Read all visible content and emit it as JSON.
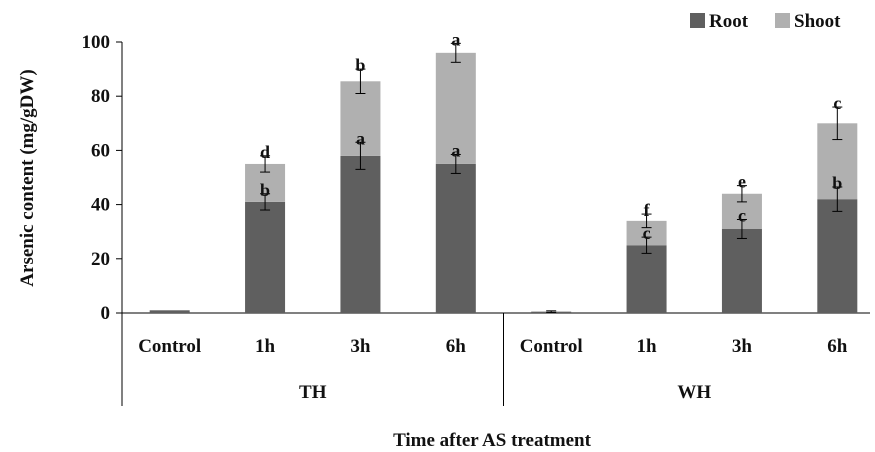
{
  "chart_data": {
    "type": "bar",
    "stacked": true,
    "title": "",
    "xlabel": "Time after AS treatment",
    "ylabel": "Arsenic content (mg/gDW)",
    "ylim": [
      0,
      100
    ],
    "yticks": [
      0,
      20,
      40,
      60,
      80,
      100
    ],
    "grid": false,
    "legend_position": "top-right",
    "groups": [
      "TH",
      "WH"
    ],
    "categories": [
      "Control",
      "1h",
      "3h",
      "6h",
      "Control",
      "1h",
      "3h",
      "6h"
    ],
    "series": [
      {
        "name": "Root",
        "color": "#5f5f5f",
        "values": [
          1,
          41,
          58,
          55,
          0.5,
          25,
          31,
          42
        ],
        "error": [
          0,
          3,
          5,
          3.5,
          0,
          3,
          3.5,
          4.5
        ],
        "letters": [
          "",
          "b",
          "a",
          "a",
          "",
          "c",
          "c",
          "b"
        ]
      },
      {
        "name": "Shoot",
        "color": "#b0b0b0",
        "values": [
          0,
          14,
          27.5,
          41,
          0,
          9,
          13,
          28
        ],
        "error": [
          0,
          3,
          4.5,
          3.5,
          0.3,
          2.5,
          3,
          6
        ],
        "letters": [
          "",
          "d",
          "b",
          "a",
          "",
          "f",
          "e",
          "c"
        ]
      }
    ]
  }
}
